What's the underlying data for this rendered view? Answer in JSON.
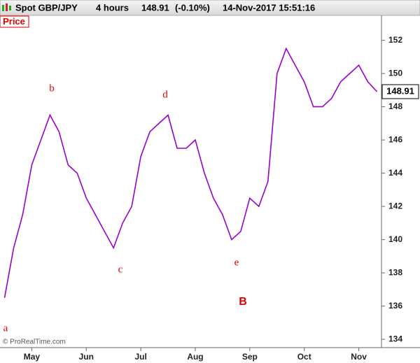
{
  "chart_data": {
    "type": "line",
    "title": "Spot GBP/JPY",
    "period": "4 hours",
    "change": "(-0.10%)",
    "datetime": "14-Nov-2017 15:51:16",
    "panel_label": "Price",
    "watermark": "© ProRealTime.com",
    "annotations": [
      "a",
      "b",
      "c",
      "d",
      "e",
      "B"
    ],
    "categories": [
      null,
      null,
      null,
      "May",
      null,
      null,
      null,
      null,
      null,
      "Jun",
      null,
      null,
      null,
      null,
      null,
      "Jul",
      null,
      null,
      null,
      null,
      null,
      "Aug",
      null,
      null,
      null,
      null,
      null,
      "Sep",
      null,
      null,
      null,
      null,
      null,
      "Oct",
      null,
      null,
      null,
      null,
      null,
      "Nov",
      null,
      null
    ],
    "series": [
      {
        "name": "Spot GBP/JPY",
        "color": "#9900cc",
        "values": [
          136.5,
          139.5,
          141.5,
          144.5,
          146,
          147.5,
          146.5,
          144.5,
          144,
          142.5,
          141.5,
          140.5,
          139.5,
          141,
          142,
          145,
          146.5,
          147,
          147.5,
          145.5,
          145.5,
          146,
          144,
          142.5,
          141.5,
          140,
          140.5,
          142.5,
          142,
          143.5,
          150,
          151.5,
          150.5,
          149.5,
          148,
          148,
          148.5,
          149.5,
          150,
          150.5,
          149.5,
          148.91
        ]
      }
    ],
    "ylim": [
      133.5,
      153.5
    ],
    "yticks": [
      134,
      136,
      138,
      140,
      142,
      144,
      146,
      148,
      150,
      152
    ],
    "y_axis_side": "right",
    "grid": false
  }
}
